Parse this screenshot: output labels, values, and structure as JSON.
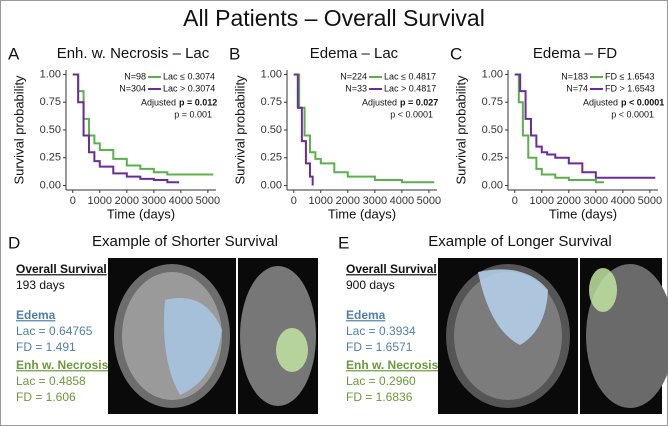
{
  "title": "All Patients – Overall Survival",
  "chart_data": [
    {
      "type": "step",
      "panel": "A",
      "title": "Enh. w. Necrosis – Lac",
      "xlabel": "Time (days)",
      "ylabel": "Survival probability",
      "xlim": [
        -250,
        5300
      ],
      "ylim": [
        -0.04,
        1.04
      ],
      "xticks": [
        0,
        1000,
        2000,
        3000,
        4000,
        5000
      ],
      "yticks": [
        {
          "value": 0,
          "label": "0.00"
        },
        {
          "value": 0.25,
          "label": "0.25"
        },
        {
          "value": 0.5,
          "label": "0.50"
        },
        {
          "value": 0.75,
          "label": "0.75"
        },
        {
          "value": 1,
          "label": "1.00"
        }
      ],
      "series": [
        {
          "name": "Lac ≤ 0.3074",
          "n_label": "N=98",
          "color": "#5cb04a",
          "x": [
            0,
            200,
            400,
            600,
            800,
            1000,
            1500,
            2000,
            2500,
            3000,
            3500,
            5200
          ],
          "values": [
            1,
            0.85,
            0.6,
            0.45,
            0.38,
            0.32,
            0.24,
            0.18,
            0.15,
            0.12,
            0.1,
            0.1
          ]
        },
        {
          "name": "Lac > 0.3074",
          "n_label": "N=304",
          "color": "#6a2c9a",
          "x": [
            0,
            200,
            400,
            600,
            800,
            1000,
            1500,
            2000,
            2500,
            3000,
            3500,
            3900
          ],
          "values": [
            1,
            0.75,
            0.45,
            0.3,
            0.22,
            0.17,
            0.11,
            0.08,
            0.06,
            0.05,
            0.03,
            0.02
          ]
        }
      ],
      "adjusted_label": "Adjusted",
      "adjusted_p": "p = 0.012",
      "p": "p = 0.001"
    },
    {
      "type": "step",
      "panel": "B",
      "title": "Edema – Lac",
      "xlabel": "Time (days)",
      "ylabel": "Survival probability",
      "xlim": [
        -250,
        5300
      ],
      "ylim": [
        -0.04,
        1.04
      ],
      "xticks": [
        0,
        1000,
        2000,
        3000,
        4000,
        5000
      ],
      "yticks": [
        {
          "value": 0,
          "label": "0.00"
        },
        {
          "value": 0.25,
          "label": "0.25"
        },
        {
          "value": 0.5,
          "label": "0.50"
        },
        {
          "value": 0.75,
          "label": "0.75"
        },
        {
          "value": 1,
          "label": "1.00"
        }
      ],
      "series": [
        {
          "name": "Lac ≤ 0.4817",
          "n_label": "N=224",
          "color": "#5cb04a",
          "x": [
            0,
            200,
            400,
            600,
            800,
            1000,
            1500,
            2000,
            3000,
            4000,
            5200
          ],
          "values": [
            1,
            0.7,
            0.45,
            0.3,
            0.24,
            0.2,
            0.12,
            0.08,
            0.05,
            0.03,
            0.03
          ]
        },
        {
          "name": "Lac > 0.4817",
          "n_label": "N=33",
          "color": "#6a2c9a",
          "x": [
            0,
            150,
            300,
            450,
            600,
            700
          ],
          "values": [
            1,
            0.7,
            0.4,
            0.2,
            0.08,
            0
          ]
        }
      ],
      "adjusted_label": "Adjusted",
      "adjusted_p": "p = 0.027",
      "p": "p < 0.0001"
    },
    {
      "type": "step",
      "panel": "C",
      "title": "Edema – FD",
      "xlabel": "Time (days)",
      "ylabel": "Survival probability",
      "xlim": [
        -250,
        5300
      ],
      "ylim": [
        -0.04,
        1.04
      ],
      "xticks": [
        0,
        1000,
        2000,
        3000,
        4000,
        5000
      ],
      "yticks": [
        {
          "value": 0,
          "label": "0.00"
        },
        {
          "value": 0.25,
          "label": "0.25"
        },
        {
          "value": 0.5,
          "label": "0.50"
        },
        {
          "value": 0.75,
          "label": "0.75"
        },
        {
          "value": 1,
          "label": "1.00"
        }
      ],
      "series": [
        {
          "name": "FD ≤ 1.6543",
          "n_label": "N=183",
          "color": "#5cb04a",
          "x": [
            0,
            150,
            300,
            500,
            800,
            1000,
            1500,
            2000,
            3000,
            3300
          ],
          "values": [
            1,
            0.75,
            0.45,
            0.25,
            0.15,
            0.1,
            0.07,
            0.05,
            0.03,
            0.03
          ]
        },
        {
          "name": "FD > 1.6543",
          "n_label": "N=74",
          "color": "#6a2c9a",
          "x": [
            0,
            200,
            400,
            600,
            800,
            1000,
            1200,
            1500,
            2000,
            2500,
            3000,
            5200
          ],
          "values": [
            1,
            0.85,
            0.6,
            0.45,
            0.35,
            0.3,
            0.28,
            0.25,
            0.2,
            0.12,
            0.07,
            0.07
          ]
        }
      ],
      "adjusted_label": "Adjusted",
      "adjusted_p": "p < 0.0001",
      "p": "p < 0.0001"
    }
  ],
  "panels": [
    {
      "letter": "D",
      "title": "Example of Shorter Survival",
      "survival_label": "Overall Survival",
      "survival": "193 days",
      "edema_label": "Edema",
      "edema_lac": "Lac = 0.64765",
      "edema_fd": "FD = 1.491",
      "enh_label": "Enh w. Necrosis",
      "enh_lac": "Lac = 0.4858",
      "enh_fd": "FD = 1.606"
    },
    {
      "letter": "E",
      "title": "Example of Longer Survival",
      "survival_label": "Overall Survival",
      "survival": "900 days",
      "edema_label": "Edema",
      "edema_lac": "Lac = 0.3934",
      "edema_fd": "FD = 1.6571",
      "enh_label": "Enh w. Necrosis",
      "enh_lac": "Lac = 0.2960",
      "enh_fd": "FD = 1.6836"
    }
  ]
}
